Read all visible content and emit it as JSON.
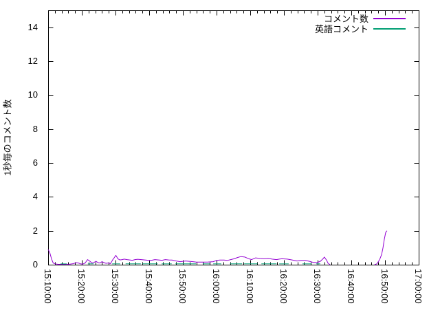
{
  "chart_data": {
    "type": "line",
    "title": "",
    "xlabel": "",
    "ylabel": "1秒毎のコメント数",
    "grid": false,
    "legend_position": "top-right",
    "background": "#ffffff",
    "border_color": "#000000",
    "x_axis": {
      "start_min": 0,
      "end_min": 110,
      "major_tick_interval_min": 10,
      "minor_tick_interval_min": 2,
      "tick_labels": [
        "15:10:00",
        "15:20:00",
        "15:30:00",
        "15:40:00",
        "15:50:00",
        "16:00:00",
        "16:10:00",
        "16:20:00",
        "16:30:00",
        "16:40:00",
        "16:50:00",
        "17:00:00"
      ]
    },
    "y_axis": {
      "min": 0,
      "max": 15,
      "major_tick_interval": 2,
      "tick_labels": [
        "0",
        "2",
        "4",
        "6",
        "8",
        "10",
        "12",
        "14"
      ]
    },
    "series": [
      {
        "name": "コメント数",
        "color": "#9400D3",
        "segments": [
          [
            [
              0,
              0.9
            ],
            [
              0.5,
              0.7
            ],
            [
              1,
              0.35
            ],
            [
              1.5,
              0.1
            ],
            [
              2.2,
              0.04
            ],
            [
              3,
              0.02
            ],
            [
              5,
              0.02
            ],
            [
              6.5,
              0.03
            ],
            [
              7.5,
              0.06
            ],
            [
              8.3,
              0.12
            ],
            [
              9,
              0.1
            ],
            [
              9.6,
              0.05
            ],
            [
              10.2,
              0.03
            ],
            [
              11,
              0.1
            ],
            [
              11.7,
              0.3
            ],
            [
              12.3,
              0.22
            ],
            [
              13,
              0.1
            ],
            [
              13.6,
              0.13
            ],
            [
              14.2,
              0.2
            ],
            [
              14.8,
              0.12
            ],
            [
              15.4,
              0.1
            ],
            [
              16,
              0.18
            ],
            [
              16.6,
              0.12
            ],
            [
              17.2,
              0.08
            ],
            [
              17.9,
              0.1
            ],
            [
              18.5,
              0.06
            ],
            [
              19.2,
              0.3
            ],
            [
              19.7,
              0.43
            ],
            [
              20.1,
              0.55
            ],
            [
              20.7,
              0.35
            ],
            [
              21.3,
              0.28
            ],
            [
              22,
              0.3
            ],
            [
              22.6,
              0.33
            ],
            [
              23.4,
              0.3
            ],
            [
              24.2,
              0.28
            ],
            [
              25,
              0.26
            ],
            [
              25.8,
              0.3
            ],
            [
              26.6,
              0.32
            ],
            [
              27.7,
              0.3
            ],
            [
              28.7,
              0.28
            ],
            [
              29.7,
              0.26
            ],
            [
              30.7,
              0.26
            ],
            [
              31.7,
              0.3
            ],
            [
              32.8,
              0.28
            ],
            [
              33.8,
              0.26
            ],
            [
              34.8,
              0.3
            ],
            [
              35.8,
              0.28
            ],
            [
              36.8,
              0.27
            ],
            [
              38,
              0.22
            ],
            [
              39.2,
              0.18
            ],
            [
              40.8,
              0.22
            ],
            [
              41.9,
              0.2
            ],
            [
              43,
              0.18
            ],
            [
              44,
              0.15
            ],
            [
              46,
              0.15
            ],
            [
              47.5,
              0.16
            ],
            [
              49,
              0.18
            ],
            [
              50,
              0.25
            ],
            [
              51,
              0.27
            ],
            [
              52.2,
              0.27
            ],
            [
              53.2,
              0.25
            ],
            [
              54.2,
              0.3
            ],
            [
              55.2,
              0.35
            ],
            [
              56.2,
              0.42
            ],
            [
              57.2,
              0.48
            ],
            [
              58.4,
              0.45
            ],
            [
              59.6,
              0.35
            ],
            [
              60.4,
              0.3
            ],
            [
              61.6,
              0.4
            ],
            [
              62.9,
              0.37
            ],
            [
              64.1,
              0.35
            ],
            [
              65.3,
              0.37
            ],
            [
              66.5,
              0.33
            ],
            [
              67.8,
              0.3
            ],
            [
              68.6,
              0.33
            ],
            [
              69.4,
              0.35
            ],
            [
              71,
              0.33
            ],
            [
              72.4,
              0.28
            ],
            [
              73.9,
              0.22
            ],
            [
              75.1,
              0.25
            ],
            [
              76.3,
              0.25
            ],
            [
              77.6,
              0.2
            ],
            [
              78.8,
              0.13
            ],
            [
              79.8,
              0.12
            ],
            [
              80.8,
              0.2
            ],
            [
              81.6,
              0.35
            ],
            [
              82,
              0.45
            ],
            [
              82.7,
              0.25
            ],
            [
              83.1,
              0.08
            ],
            [
              83.7,
              0
            ]
          ],
          [
            [
              96.9,
              0
            ],
            [
              97.6,
              0.05
            ],
            [
              98.4,
              0.3
            ],
            [
              99,
              0.6
            ],
            [
              99.4,
              1.0
            ],
            [
              99.8,
              1.5
            ],
            [
              100.2,
              1.9
            ],
            [
              100.6,
              2.0
            ]
          ]
        ]
      },
      {
        "name": "英語コメント",
        "color": "#009E73",
        "segments": [
          [
            [
              3.7,
              0.05
            ],
            [
              5.5,
              0.05
            ]
          ],
          [
            [
              11.8,
              0.05
            ],
            [
              13.5,
              0.05
            ]
          ],
          [
            [
              19,
              0.05
            ],
            [
              21.4,
              0.05
            ]
          ],
          [
            [
              23,
              0.05
            ],
            [
              27.5,
              0.05
            ]
          ],
          [
            [
              28,
              0.05
            ],
            [
              32.5,
              0.05
            ]
          ],
          [
            [
              33.7,
              0.05
            ],
            [
              36.7,
              0.05
            ]
          ],
          [
            [
              37.8,
              0.05
            ],
            [
              43.9,
              0.05
            ]
          ],
          [
            [
              45.9,
              0.05
            ],
            [
              48,
              0.05
            ]
          ],
          [
            [
              49,
              0.05
            ],
            [
              51.4,
              0.05
            ]
          ],
          [
            [
              54,
              0.05
            ],
            [
              57.6,
              0.05
            ]
          ],
          [
            [
              58.2,
              0.05
            ],
            [
              62.2,
              0.05
            ]
          ],
          [
            [
              63.3,
              0.05
            ],
            [
              67.8,
              0.05
            ]
          ],
          [
            [
              68.6,
              0.05
            ],
            [
              71.4,
              0.05
            ]
          ],
          [
            [
              75.5,
              0.05
            ],
            [
              78.2,
              0.05
            ]
          ],
          [
            [
              79.6,
              0.05
            ],
            [
              80.8,
              0.05
            ]
          ]
        ]
      }
    ]
  }
}
